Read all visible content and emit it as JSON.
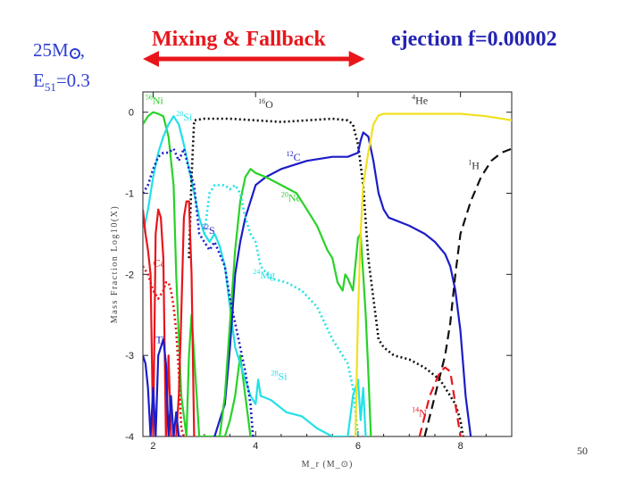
{
  "slide": {
    "title_mixing": "Mixing & Fallback",
    "title_ejection": "ejection f=0.00002",
    "model_mass": "25M",
    "model_energy_label": "E",
    "model_energy_sub": "51",
    "model_energy_value": "=0.3",
    "page_number": "50"
  },
  "colors": {
    "title_red": "#e8161b",
    "title_blue": "#2424b4",
    "arrow_red": "#e8161b"
  },
  "chart_data": {
    "type": "line",
    "xlabel": "M_r (M_⊙)",
    "ylabel": "Mass Fraction Log10(X)",
    "xlim": [
      1.8,
      9.0
    ],
    "ylim": [
      -4,
      0.25
    ],
    "xticks": [
      2,
      4,
      6,
      8
    ],
    "yticks": [
      0,
      -1,
      -2,
      -3,
      -4
    ],
    "xtick_labels": [
      "2",
      "4",
      "6",
      "8"
    ],
    "ytick_labels": [
      "0",
      "-1",
      "-2",
      "-3",
      "-4"
    ],
    "annotation_arrow": {
      "label": "Mixing & Fallback",
      "x_start": 1.8,
      "x_end": 6.1
    },
    "series": [
      {
        "name": "56Ni",
        "iso": "Ni",
        "mass": "56",
        "color": "#28d228",
        "dash": "solid",
        "x": [
          1.8,
          1.9,
          2.0,
          2.1,
          2.2,
          2.3,
          2.4,
          2.45,
          2.55,
          2.65,
          2.7,
          2.75,
          2.8,
          2.9,
          3.0,
          3.1,
          3.2,
          3.3,
          3.4,
          3.5,
          3.6,
          3.7,
          3.8,
          3.9
        ],
        "y": [
          -0.15,
          -0.05,
          0.0,
          -0.02,
          -0.05,
          -0.3,
          -0.9,
          -2.0,
          -3.5,
          -4.0,
          -3.0,
          -2.5,
          -3.0,
          -4.0,
          -4.0,
          -4.0,
          -4.0,
          -4.0,
          -4.0,
          -3.8,
          -3.5,
          -3.0,
          -3.5,
          -4.0
        ]
      },
      {
        "name": "28Si",
        "iso": "Si",
        "mass": "28",
        "color": "#22e1e6",
        "dash": "solid",
        "x": [
          1.8,
          1.9,
          2.0,
          2.1,
          2.2,
          2.3,
          2.4,
          2.5,
          2.6,
          2.7,
          2.8,
          2.9,
          3.0,
          3.1,
          3.2,
          3.3,
          3.4,
          3.5,
          3.6,
          3.7,
          3.8,
          3.9,
          4.0,
          4.05,
          4.1,
          4.3,
          4.6,
          4.9,
          5.2,
          5.5,
          5.8,
          5.9,
          6.0,
          6.05,
          6.1,
          6.15
        ],
        "y": [
          -1.5,
          -1.2,
          -0.8,
          -0.5,
          -0.3,
          -0.15,
          -0.05,
          -0.15,
          -0.4,
          -0.7,
          -1.0,
          -1.3,
          -1.5,
          -1.6,
          -1.5,
          -1.65,
          -1.9,
          -2.4,
          -2.9,
          -3.1,
          -3.3,
          -3.5,
          -3.6,
          -3.3,
          -3.5,
          -3.55,
          -3.7,
          -3.75,
          -3.9,
          -4.0,
          -4.0,
          -3.5,
          -3.3,
          -3.8,
          -3.4,
          -4.0
        ]
      },
      {
        "name": "16O",
        "iso": "O",
        "mass": "16",
        "color": "#111111",
        "dash": "dotted",
        "x": [
          2.7,
          2.75,
          2.8,
          3.0,
          3.5,
          4.0,
          4.5,
          5.0,
          5.5,
          5.8,
          5.9,
          6.0,
          6.1,
          6.2,
          6.4,
          6.5,
          6.7,
          7.0,
          7.3,
          7.6,
          7.8,
          7.9,
          8.0,
          8.05
        ],
        "y": [
          -1.8,
          -0.8,
          -0.1,
          -0.08,
          -0.08,
          -0.1,
          -0.12,
          -0.1,
          -0.08,
          -0.1,
          -0.15,
          -0.4,
          -0.9,
          -1.8,
          -2.8,
          -2.9,
          -3.0,
          -3.05,
          -3.15,
          -3.3,
          -3.5,
          -3.6,
          -3.8,
          -4.0
        ]
      },
      {
        "name": "12C",
        "iso": "C",
        "mass": "12",
        "color": "#1c1cc8",
        "dash": "solid",
        "x": [
          3.2,
          3.3,
          3.4,
          3.5,
          3.6,
          3.7,
          3.8,
          3.9,
          4.0,
          4.1,
          4.2,
          4.5,
          5.0,
          5.5,
          5.8,
          6.0,
          6.05,
          6.1,
          6.2,
          6.3,
          6.4,
          6.5,
          6.6,
          7.0,
          7.3,
          7.5,
          7.7,
          7.8,
          7.9,
          8.0,
          8.1,
          8.2
        ],
        "y": [
          -4.0,
          -3.8,
          -3.6,
          -2.9,
          -2.0,
          -1.6,
          -1.3,
          -1.1,
          -0.9,
          -0.85,
          -0.8,
          -0.7,
          -0.6,
          -0.55,
          -0.55,
          -0.5,
          -0.35,
          -0.25,
          -0.3,
          -0.6,
          -1.0,
          -1.2,
          -1.3,
          -1.4,
          -1.5,
          -1.6,
          -1.75,
          -1.9,
          -2.2,
          -2.7,
          -3.5,
          -4.0
        ]
      },
      {
        "name": "20Ne",
        "iso": "Ne",
        "mass": "20",
        "color": "#28d228",
        "dash": "solid",
        "x": [
          3.3,
          3.4,
          3.5,
          3.6,
          3.7,
          3.8,
          3.9,
          4.0,
          4.2,
          4.5,
          4.8,
          5.0,
          5.2,
          5.4,
          5.5,
          5.6,
          5.7,
          5.75,
          5.8,
          5.9,
          6.0,
          6.05,
          6.1,
          6.15,
          6.2,
          6.25
        ],
        "y": [
          -4.0,
          -3.5,
          -2.6,
          -1.7,
          -1.1,
          -0.8,
          -0.7,
          -0.75,
          -0.8,
          -0.9,
          -1.0,
          -1.2,
          -1.4,
          -1.7,
          -1.8,
          -2.1,
          -2.2,
          -2.0,
          -2.05,
          -2.2,
          -1.55,
          -1.5,
          -2.0,
          -2.5,
          -3.2,
          -4.0
        ]
      },
      {
        "name": "24Mg",
        "iso": "Mg",
        "mass": "24",
        "color": "#22e1e6",
        "dash": "dotted",
        "x": [
          3.0,
          3.1,
          3.2,
          3.3,
          3.4,
          3.5,
          3.6,
          3.7,
          3.8,
          3.9,
          4.0,
          4.1,
          4.3,
          4.6,
          4.9,
          5.2,
          5.5,
          5.8,
          5.9,
          6.0
        ],
        "y": [
          -1.5,
          -1.0,
          -0.9,
          -0.9,
          -0.9,
          -0.95,
          -0.9,
          -1.0,
          -1.3,
          -1.5,
          -1.6,
          -1.9,
          -2.05,
          -2.1,
          -2.2,
          -2.4,
          -2.8,
          -3.1,
          -3.4,
          -4.0
        ]
      },
      {
        "name": "4He",
        "iso": "He",
        "mass": "4",
        "color": "#f0e020",
        "dash": "solid",
        "x": [
          5.95,
          6.0,
          6.05,
          6.1,
          6.15,
          6.2,
          6.3,
          6.4,
          6.5,
          7.0,
          7.5,
          8.0,
          8.5,
          9.0
        ],
        "y": [
          -4.0,
          -2.5,
          -1.5,
          -0.9,
          -0.7,
          -0.5,
          -0.15,
          -0.04,
          -0.02,
          -0.02,
          -0.02,
          -0.02,
          -0.05,
          -0.1
        ]
      },
      {
        "name": "1H",
        "iso": "H",
        "mass": "1",
        "color": "#111111",
        "dash": "dashed",
        "x": [
          7.3,
          7.5,
          7.7,
          7.8,
          7.9,
          8.0,
          8.2,
          8.4,
          8.6,
          8.8,
          9.0
        ],
        "y": [
          -4.0,
          -3.5,
          -3.0,
          -2.6,
          -2.0,
          -1.5,
          -1.1,
          -0.8,
          -0.6,
          -0.5,
          -0.45
        ]
      },
      {
        "name": "14N",
        "iso": "N",
        "mass": "14",
        "color": "#e8161b",
        "dash": "dashed",
        "x": [
          7.2,
          7.4,
          7.6,
          7.7,
          7.8,
          7.9,
          8.0,
          8.05
        ],
        "y": [
          -4.0,
          -3.5,
          -3.2,
          -3.15,
          -3.2,
          -3.6,
          -4.0,
          -4.0
        ]
      },
      {
        "name": "32S",
        "iso": "S",
        "mass": "32",
        "color": "#1c1cc8",
        "dash": "dotted",
        "x": [
          1.8,
          1.9,
          2.0,
          2.1,
          2.2,
          2.3,
          2.4,
          2.5,
          2.6,
          2.7,
          2.8,
          2.9,
          3.0,
          3.1,
          3.2,
          3.3,
          3.4,
          3.5,
          3.6,
          3.7,
          3.8,
          3.9,
          3.95
        ],
        "y": [
          -1.0,
          -0.9,
          -0.7,
          -0.55,
          -0.5,
          -0.5,
          -0.45,
          -0.6,
          -0.45,
          -0.7,
          -0.9,
          -1.5,
          -1.6,
          -1.7,
          -1.6,
          -1.75,
          -1.9,
          -2.3,
          -2.6,
          -2.9,
          -3.2,
          -3.6,
          -4.0
        ]
      },
      {
        "name": "Ca",
        "iso": "Ca",
        "mass": "",
        "color": "#e8161b",
        "dash": "dotted",
        "x": [
          1.8,
          1.9,
          2.0,
          2.1,
          2.2,
          2.25,
          2.3,
          2.35,
          2.4,
          2.45,
          2.5,
          2.55,
          2.6,
          2.65
        ],
        "y": [
          -1.9,
          -2.0,
          -2.2,
          -2.3,
          -2.2,
          -2.1,
          -2.1,
          -2.2,
          -2.4,
          -2.7,
          -3.2,
          -3.9,
          -4.0,
          -4.0
        ]
      },
      {
        "name": "Ca-solid",
        "iso": "",
        "mass": "",
        "color": "#e8161b",
        "dash": "solid",
        "x": [
          1.8,
          1.85,
          1.9,
          1.95,
          2.0,
          2.05,
          2.1,
          2.15,
          2.2,
          2.25,
          2.3,
          2.35,
          2.4,
          2.45,
          2.5,
          2.55,
          2.6,
          2.65,
          2.7,
          2.75,
          2.8
        ],
        "y": [
          -1.2,
          -1.5,
          -1.7,
          -2.0,
          -4.0,
          -1.5,
          -1.2,
          -1.3,
          -1.8,
          -4.0,
          -3.0,
          -4.0,
          -4.0,
          -4.0,
          -3.5,
          -2.5,
          -1.3,
          -1.1,
          -1.1,
          -2.0,
          -4.0
        ]
      },
      {
        "name": "Ti",
        "iso": "Ti",
        "mass": "",
        "color": "#1c1cc8",
        "dash": "solid",
        "x": [
          1.8,
          1.85,
          1.9,
          1.95,
          2.0,
          2.05,
          2.1,
          2.15,
          2.2,
          2.25,
          2.3,
          2.35,
          2.4,
          2.45,
          2.5,
          2.55
        ],
        "y": [
          -3.0,
          -3.1,
          -3.4,
          -4.0,
          -3.4,
          -4.0,
          -3.0,
          -2.9,
          -2.8,
          -3.1,
          -4.0,
          -3.5,
          -4.0,
          -3.7,
          -4.0,
          -4.0
        ]
      }
    ],
    "labels": [
      {
        "series": "56Ni",
        "x": 1.85,
        "y": 0.1,
        "color": "#28d228"
      },
      {
        "series": "28Si",
        "x": 2.45,
        "y": -0.1,
        "color": "#22e1e6"
      },
      {
        "series": "16O",
        "x": 4.05,
        "y": 0.05,
        "color": "#333333"
      },
      {
        "series": "4He",
        "x": 7.05,
        "y": 0.1,
        "color": "#333333"
      },
      {
        "series": "12C",
        "x": 4.6,
        "y": -0.6,
        "color": "#1c1cc8"
      },
      {
        "series": "1H",
        "x": 8.15,
        "y": -0.7,
        "color": "#333333"
      },
      {
        "series": "20Ne",
        "x": 4.5,
        "y": -1.1,
        "color": "#28d228"
      },
      {
        "series": "32S",
        "x": 2.95,
        "y": -1.5,
        "color": "#1c1cc8"
      },
      {
        "series": "Ca",
        "x": 2.0,
        "y": -1.9,
        "color": "#e8161b"
      },
      {
        "series": "24Mg",
        "x": 3.95,
        "y": -2.05,
        "color": "#22e1e6"
      },
      {
        "series": "Ti",
        "x": 2.05,
        "y": -2.85,
        "color": "#1c1cc8"
      },
      {
        "series": "28Si",
        "x": 4.3,
        "y": -3.3,
        "color": "#22e1e6"
      },
      {
        "series": "14N",
        "x": 7.05,
        "y": -3.75,
        "color": "#e8161b"
      }
    ]
  }
}
